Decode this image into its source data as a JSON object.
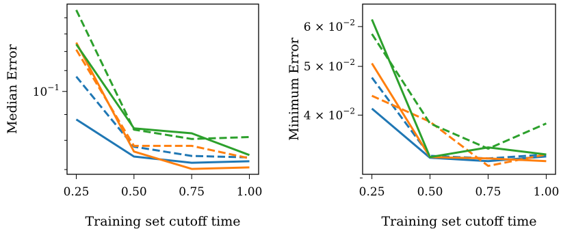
{
  "chart_data": [
    {
      "type": "line",
      "xlabel": "Training set cutoff time",
      "ylabel": "Median Error",
      "yscale": "log",
      "xlim": [
        0.21,
        1.04
      ],
      "ylim": [
        0.0685,
        0.149
      ],
      "x_ticks": [
        0.25,
        0.5,
        0.75,
        1.0
      ],
      "x_tick_labels": [
        "0.25",
        "0.50",
        "0.75",
        "1.00"
      ],
      "y_major_ticks": [
        0.1
      ],
      "y_major_tick_labels": [
        "10"
      ],
      "y_major_tick_exponents": [
        "−1"
      ],
      "y_minor_ticks": [
        0.07,
        0.08,
        0.09,
        0.11,
        0.12,
        0.13,
        0.14
      ],
      "grid": false,
      "legend": "none",
      "x": [
        0.25,
        0.5,
        0.75,
        1.0
      ],
      "series": [
        {
          "color": "#1f77b4",
          "style": "solid",
          "values": [
            0.088,
            0.0743,
            0.0722,
            0.0727
          ]
        },
        {
          "color": "#1f77b4",
          "style": "dashed",
          "values": [
            0.107,
            0.0777,
            0.0745,
            0.074
          ]
        },
        {
          "color": "#ff7f0e",
          "style": "solid",
          "values": [
            0.125,
            0.076,
            0.0702,
            0.0707
          ]
        },
        {
          "color": "#ff7f0e",
          "style": "dashed",
          "values": [
            0.121,
            0.078,
            0.078,
            0.0737
          ]
        },
        {
          "color": "#2ca02c",
          "style": "solid",
          "values": [
            0.124,
            0.0845,
            0.0826,
            0.0748
          ]
        },
        {
          "color": "#2ca02c",
          "style": "dashed",
          "values": [
            0.145,
            0.084,
            0.0805,
            0.0812
          ]
        }
      ]
    },
    {
      "type": "line",
      "xlabel": "Training set cutoff time",
      "ylabel": "Minimum Error",
      "yscale": "log",
      "xlim": [
        0.21,
        1.04
      ],
      "ylim": [
        0.0305,
        0.0665
      ],
      "x_ticks": [
        0.25,
        0.5,
        0.75,
        1.0
      ],
      "x_tick_labels": [
        "0.25",
        "0.50",
        "0.75",
        "1.00"
      ],
      "y_major_ticks": [
        0.04,
        0.05,
        0.06
      ],
      "y_major_tick_labels": [
        "4 × 10",
        "5 × 10",
        "6 × 10"
      ],
      "y_major_tick_exponents": [
        "−2",
        "−2",
        "−2"
      ],
      "y_minor_ticks": [
        0.03
      ],
      "grid": false,
      "legend": "none",
      "x": [
        0.25,
        0.5,
        0.75,
        1.0
      ],
      "series": [
        {
          "color": "#1f77b4",
          "style": "solid",
          "values": [
            0.0412,
            0.0329,
            0.0324,
            0.0331
          ]
        },
        {
          "color": "#1f77b4",
          "style": "dashed",
          "values": [
            0.0475,
            0.0332,
            0.0328,
            0.0334
          ]
        },
        {
          "color": "#ff7f0e",
          "style": "solid",
          "values": [
            0.0507,
            0.033,
            0.0328,
            0.0324
          ]
        },
        {
          "color": "#ff7f0e",
          "style": "dashed",
          "values": [
            0.0437,
            0.0388,
            0.0317,
            0.0334
          ]
        },
        {
          "color": "#2ca02c",
          "style": "solid",
          "values": [
            0.062,
            0.033,
            0.0345,
            0.0334
          ]
        },
        {
          "color": "#2ca02c",
          "style": "dashed",
          "values": [
            0.058,
            0.0385,
            0.0343,
            0.0385
          ]
        }
      ]
    }
  ]
}
